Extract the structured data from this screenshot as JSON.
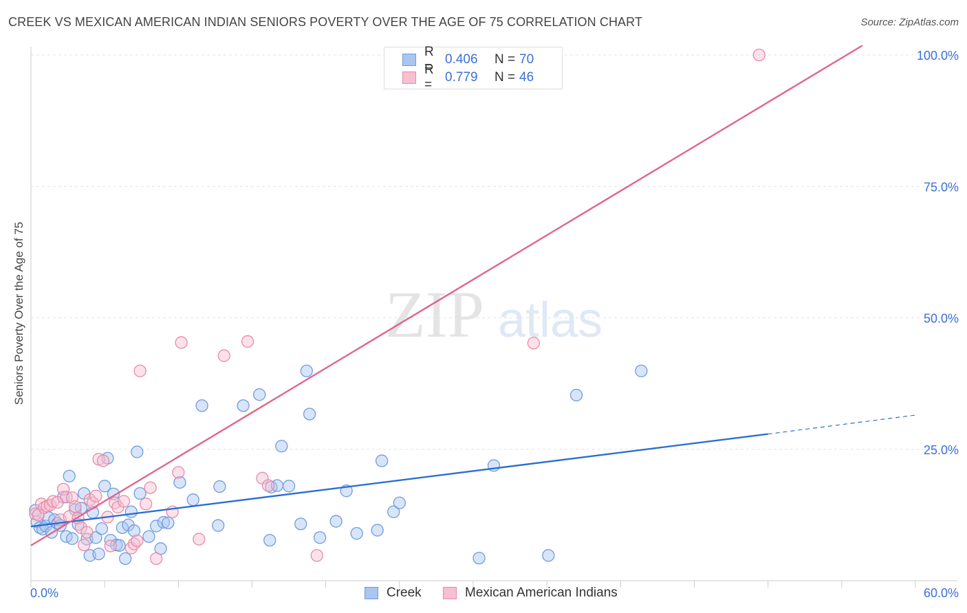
{
  "title": "CREEK VS MEXICAN AMERICAN INDIAN SENIORS POVERTY OVER THE AGE OF 75 CORRELATION CHART",
  "source": "Source: ZipAtlas.com",
  "watermark": {
    "zip": "ZIP",
    "atlas": "atlas"
  },
  "legend": {
    "rows": [
      {
        "r_label": "R =",
        "r_value": "0.406",
        "n_label": "N =",
        "n_value": "70",
        "color": "#a9c6f0",
        "border": "#6f9be0"
      },
      {
        "r_label": "R =",
        "r_value": "0.779",
        "n_label": "N =",
        "n_value": "46",
        "color": "#f7bfd1",
        "border": "#e88aa8"
      }
    ]
  },
  "bottom_legend": [
    "Creek",
    "Mexican American Indians"
  ],
  "chart_data": {
    "type": "scatter",
    "title": "CREEK VS MEXICAN AMERICAN INDIAN SENIORS POVERTY OVER THE AGE OF 75 CORRELATION CHART",
    "xlabel": "",
    "ylabel": "Seniors Poverty Over the Age of 75",
    "xlim": [
      0,
      60
    ],
    "ylim": [
      0,
      100
    ],
    "x_tick_labels": [
      "0.0%",
      "60.0%"
    ],
    "y_tick_labels": [
      "25.0%",
      "50.0%",
      "75.0%",
      "100.0%"
    ],
    "y_ticks": [
      25,
      50,
      75,
      100
    ],
    "grid": true,
    "series": [
      {
        "name": "Creek",
        "color": "#6f9be0",
        "fill": "#a9c6f0",
        "trend_color": "#2b6fd1",
        "trend": {
          "x0": 0,
          "y0": 10.3,
          "x1": 50,
          "y1": 27.9,
          "dash_to": 60,
          "dash_y": 31.5
        },
        "points": [
          [
            0.3,
            13.4
          ],
          [
            0.4,
            11.2
          ],
          [
            0.6,
            10.1
          ],
          [
            0.8,
            9.8
          ],
          [
            1.0,
            10.4
          ],
          [
            1.2,
            12.0
          ],
          [
            1.4,
            9.2
          ],
          [
            1.6,
            11.6
          ],
          [
            1.8,
            10.9
          ],
          [
            2.0,
            10.5
          ],
          [
            2.2,
            15.9
          ],
          [
            2.4,
            8.4
          ],
          [
            2.6,
            19.9
          ],
          [
            2.8,
            8.0
          ],
          [
            3.0,
            13.5
          ],
          [
            3.2,
            10.7
          ],
          [
            3.4,
            13.8
          ],
          [
            3.6,
            16.6
          ],
          [
            3.8,
            7.9
          ],
          [
            4.0,
            4.8
          ],
          [
            4.2,
            13.0
          ],
          [
            4.4,
            8.2
          ],
          [
            4.6,
            5.1
          ],
          [
            4.8,
            9.9
          ],
          [
            5.0,
            18.0
          ],
          [
            5.2,
            23.3
          ],
          [
            5.4,
            7.7
          ],
          [
            5.6,
            16.5
          ],
          [
            5.8,
            6.8
          ],
          [
            6.0,
            6.7
          ],
          [
            6.2,
            10.1
          ],
          [
            6.4,
            4.2
          ],
          [
            6.6,
            10.6
          ],
          [
            6.8,
            13.1
          ],
          [
            7.0,
            9.5
          ],
          [
            7.2,
            24.5
          ],
          [
            7.4,
            16.6
          ],
          [
            8.0,
            8.4
          ],
          [
            8.5,
            10.4
          ],
          [
            8.8,
            6.1
          ],
          [
            9.0,
            11.1
          ],
          [
            9.3,
            11.0
          ],
          [
            10.1,
            18.7
          ],
          [
            11.0,
            15.4
          ],
          [
            11.6,
            33.3
          ],
          [
            12.7,
            10.5
          ],
          [
            12.8,
            17.9
          ],
          [
            14.4,
            33.3
          ],
          [
            15.5,
            35.4
          ],
          [
            16.2,
            7.7
          ],
          [
            16.3,
            17.8
          ],
          [
            16.7,
            18.1
          ],
          [
            17.0,
            25.6
          ],
          [
            17.5,
            18.0
          ],
          [
            18.3,
            10.8
          ],
          [
            18.7,
            39.9
          ],
          [
            18.9,
            31.7
          ],
          [
            19.6,
            8.2
          ],
          [
            20.7,
            11.3
          ],
          [
            21.4,
            17.1
          ],
          [
            22.1,
            9.0
          ],
          [
            23.5,
            9.6
          ],
          [
            23.8,
            22.8
          ],
          [
            24.6,
            13.1
          ],
          [
            25.0,
            14.8
          ],
          [
            30.4,
            4.3
          ],
          [
            31.4,
            21.9
          ],
          [
            35.1,
            4.8
          ],
          [
            37.0,
            35.3
          ],
          [
            41.4,
            39.9
          ]
        ]
      },
      {
        "name": "Mexican American Indians",
        "color": "#e88aa8",
        "fill": "#f7bfd1",
        "trend_color": "#e0648c",
        "trend": {
          "x0": 0,
          "y0": 6.7,
          "x1": 56.4,
          "y1": 101.8
        },
        "points": [
          [
            0.3,
            12.7
          ],
          [
            0.5,
            12.5
          ],
          [
            0.7,
            14.6
          ],
          [
            0.9,
            13.9
          ],
          [
            1.1,
            14.2
          ],
          [
            1.3,
            14.4
          ],
          [
            1.5,
            15.1
          ],
          [
            1.8,
            14.9
          ],
          [
            2.0,
            11.6
          ],
          [
            2.2,
            17.4
          ],
          [
            2.4,
            15.9
          ],
          [
            2.6,
            12.2
          ],
          [
            2.8,
            15.8
          ],
          [
            3.0,
            14.1
          ],
          [
            3.2,
            11.9
          ],
          [
            3.4,
            10.1
          ],
          [
            3.6,
            6.8
          ],
          [
            3.8,
            9.2
          ],
          [
            4.0,
            15.4
          ],
          [
            4.2,
            14.8
          ],
          [
            4.4,
            16.1
          ],
          [
            4.6,
            23.1
          ],
          [
            4.9,
            22.8
          ],
          [
            5.2,
            12.1
          ],
          [
            5.4,
            6.6
          ],
          [
            5.7,
            14.8
          ],
          [
            5.9,
            14.0
          ],
          [
            6.3,
            15.1
          ],
          [
            6.8,
            6.2
          ],
          [
            7.0,
            7.0
          ],
          [
            7.2,
            7.6
          ],
          [
            7.4,
            39.9
          ],
          [
            7.8,
            14.6
          ],
          [
            8.1,
            17.7
          ],
          [
            8.5,
            4.2
          ],
          [
            9.6,
            13.1
          ],
          [
            10.0,
            20.6
          ],
          [
            10.2,
            45.3
          ],
          [
            11.4,
            7.9
          ],
          [
            13.1,
            42.8
          ],
          [
            14.7,
            45.5
          ],
          [
            15.7,
            19.5
          ],
          [
            16.1,
            18.1
          ],
          [
            19.4,
            4.8
          ],
          [
            34.1,
            45.2
          ],
          [
            49.4,
            100.0
          ]
        ]
      }
    ]
  }
}
